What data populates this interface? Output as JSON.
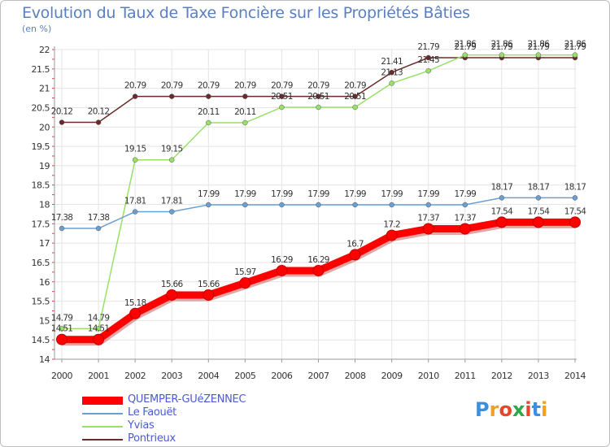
{
  "chart_data": {
    "type": "line",
    "title": "Evolution du Taux de Taxe Foncière sur les Propriétés Bâties",
    "ylabel": "(en %)",
    "xlabel": "",
    "categories": [
      "2000",
      "2001",
      "2002",
      "2003",
      "2004",
      "2005",
      "2006",
      "2007",
      "2008",
      "2009",
      "2010",
      "2011",
      "2012",
      "2013",
      "2014"
    ],
    "ylim": [
      14,
      22
    ],
    "yticks": [
      "14",
      "14.5",
      "15",
      "15.5",
      "16",
      "16.5",
      "17",
      "17.5",
      "18",
      "18.5",
      "19",
      "19.5",
      "20",
      "20.5",
      "21",
      "21.5",
      "22"
    ],
    "grid": true,
    "legend_position": "bottom-left",
    "series": [
      {
        "name": "QUEMPER-GUéZENNEC",
        "color": "#ff0000",
        "values": [
          14.51,
          14.51,
          15.18,
          15.66,
          15.66,
          15.97,
          16.29,
          16.29,
          16.7,
          17.2,
          17.37,
          17.37,
          17.54,
          17.54,
          17.54
        ],
        "labels": [
          "14.51",
          "14.51",
          "15.18",
          "15.66",
          "15.66",
          "15.97",
          "16.29",
          "16.29",
          "16.7",
          "17.2",
          "17.37",
          "17.37",
          "17.54",
          "17.54",
          "17.54"
        ]
      },
      {
        "name": "Le Faouët",
        "color": "#6a9fd4",
        "values": [
          17.38,
          17.38,
          17.81,
          17.81,
          17.99,
          17.99,
          17.99,
          17.99,
          17.99,
          17.99,
          17.99,
          17.99,
          18.17,
          18.17,
          18.17
        ],
        "labels": [
          "17.38",
          "17.38",
          "17.81",
          "17.81",
          "17.99",
          "17.99",
          "17.99",
          "17.99",
          "17.99",
          "17.99",
          "17.99",
          "17.99",
          "18.17",
          "18.17",
          "18.17"
        ]
      },
      {
        "name": "Yvias",
        "color": "#99e066",
        "values": [
          14.79,
          14.79,
          19.15,
          19.15,
          20.11,
          20.11,
          20.51,
          20.51,
          20.51,
          21.13,
          21.45,
          21.86,
          21.86,
          21.86,
          21.86
        ],
        "labels": [
          "14.79",
          "14.79",
          "19.15",
          "19.15",
          "20.11",
          "20.11",
          "20.51",
          "20.51",
          "20.51",
          "21.13",
          "21.45",
          "21.86",
          "21.86",
          "21.86",
          "21.86"
        ]
      },
      {
        "name": "Pontrieux",
        "color": "#6b2a2a",
        "values": [
          20.12,
          20.12,
          20.79,
          20.79,
          20.79,
          20.79,
          20.79,
          20.79,
          20.79,
          21.41,
          21.79,
          21.79,
          21.79,
          21.79,
          21.79
        ],
        "labels": [
          "20.12",
          "20.12",
          "20.79",
          "20.79",
          "20.79",
          "20.79",
          "20.79",
          "20.79",
          "20.79",
          "21.41",
          "21.79",
          "21.79",
          "21.79",
          "21.79",
          "21.79"
        ]
      }
    ]
  },
  "logo": {
    "text": "Proxiti",
    "letters": [
      "P",
      "r",
      "o",
      "x",
      "i",
      "t",
      "i"
    ],
    "colors": [
      "#3a8fe0",
      "#f2a020",
      "#e8452c",
      "#2aa84a",
      "#e8452c",
      "#3a8fe0",
      "#f2a020"
    ]
  }
}
